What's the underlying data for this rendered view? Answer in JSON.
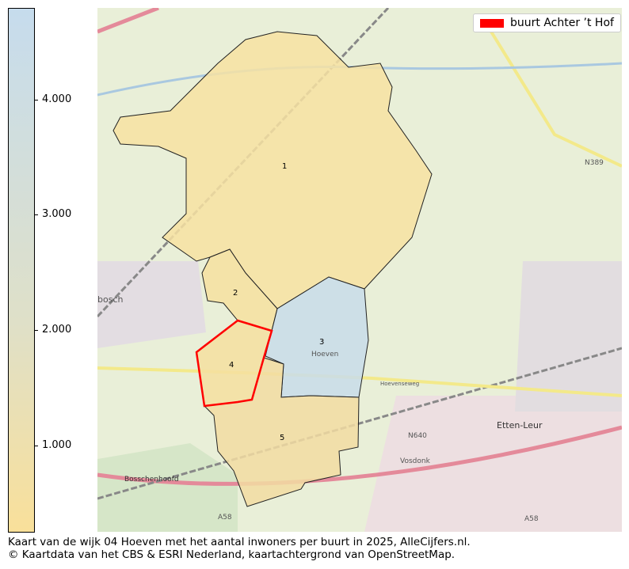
{
  "colorbar": {
    "ticks": [
      "1.000",
      "2.000",
      "3.000",
      "4.000"
    ],
    "min_color": "#f9e09a",
    "max_color": "#c6dced",
    "range": [
      250,
      4800
    ]
  },
  "legend": {
    "label": "buurt Achter ’t Hof",
    "color": "#ff0000"
  },
  "neighbourhoods": [
    {
      "label": "1",
      "color": "#f7e2a2"
    },
    {
      "label": "2",
      "color": "#f6e0a0"
    },
    {
      "label": "3",
      "color": "#c8dcea"
    },
    {
      "label": "4",
      "color": "#f5dfa0",
      "highlight": true
    },
    {
      "label": "5",
      "color": "#f2dca2"
    }
  ],
  "places": {
    "hoeven": "Hoeven",
    "bosschenhoofd": "Bosschenhoofd",
    "etten_leur": "Etten-Leur",
    "vosdonk": "Vosdonk",
    "n389": "N389",
    "n640": "N640",
    "a58": "A58",
    "a58b": "A58",
    "hoevenseweg": "Hoevenseweg",
    "bosch": "bosch"
  },
  "caption": {
    "line1": "Kaart van de wijk 04 Hoeven met het aantal inwoners per buurt in 2025, AlleCijfers.nl.",
    "line2": "© Kaartdata van het CBS & ESRI Nederland, kaartachtergrond van OpenStreetMap."
  }
}
